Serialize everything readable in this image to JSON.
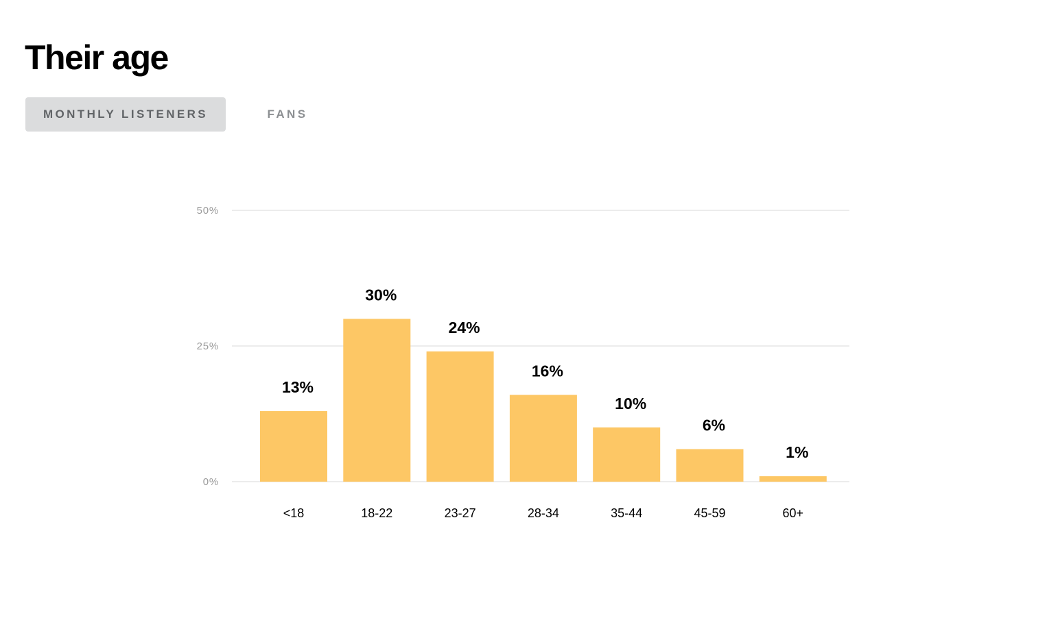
{
  "header": {
    "title": "Their age"
  },
  "tabs": [
    {
      "label": "MONTHLY LISTENERS",
      "active": true
    },
    {
      "label": "FANS",
      "active": false
    }
  ],
  "colors": {
    "bar": "#fdc765",
    "grid": "#e5e5e5",
    "active_tab_bg": "#dbdcdd"
  },
  "chart_data": {
    "type": "bar",
    "title": "",
    "xlabel": "",
    "ylabel": "",
    "categories": [
      "<18",
      "18-22",
      "23-27",
      "28-34",
      "35-44",
      "45-59",
      "60+"
    ],
    "values": [
      13,
      30,
      24,
      16,
      10,
      6,
      1
    ],
    "value_labels": [
      "13%",
      "30%",
      "24%",
      "16%",
      "10%",
      "6%",
      "1%"
    ],
    "y_ticks": [
      0,
      25,
      50
    ],
    "y_tick_labels": [
      "0%",
      "25%",
      "50%"
    ],
    "ylim": [
      0,
      50
    ],
    "grid": true,
    "legend": "none"
  }
}
